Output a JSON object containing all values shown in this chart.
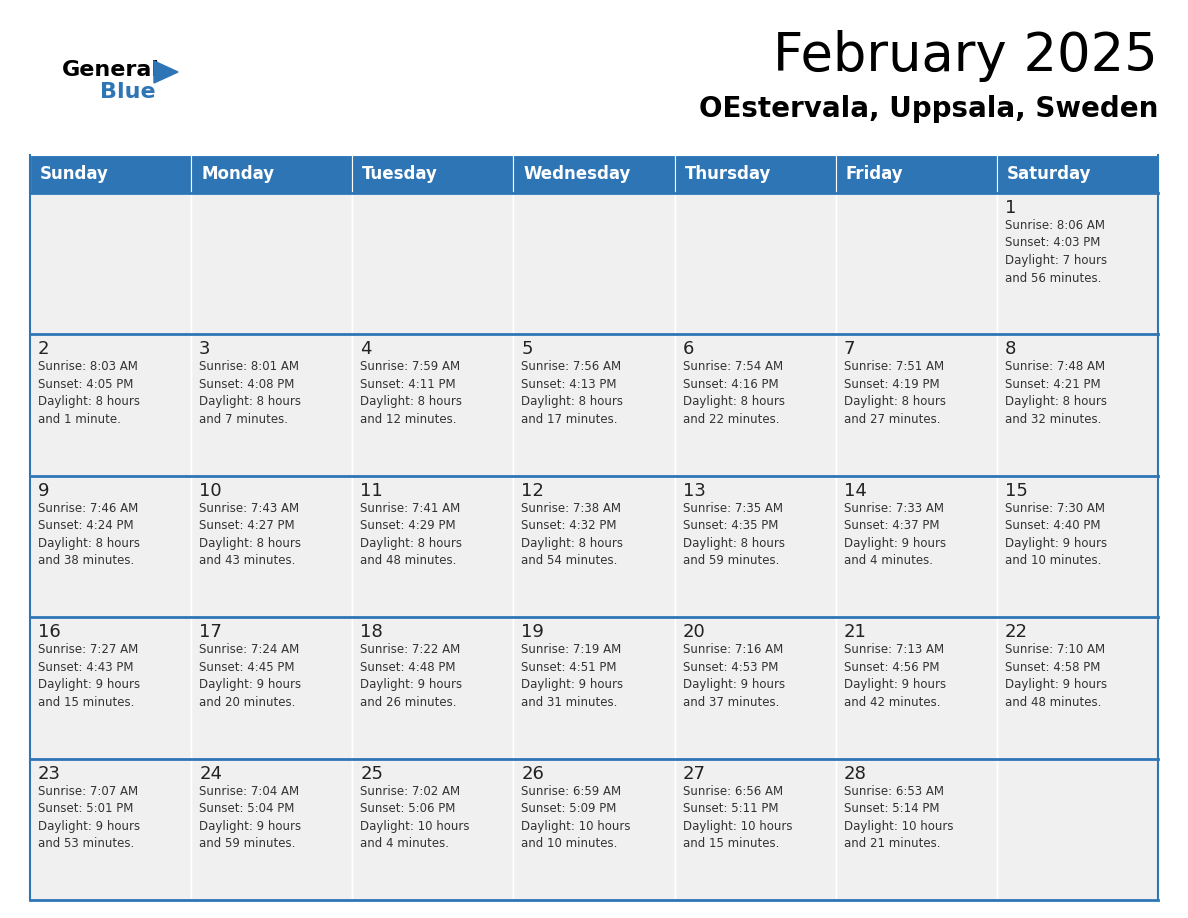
{
  "title": "February 2025",
  "subtitle": "OEstervala, Uppsala, Sweden",
  "header_color": "#2E75B6",
  "header_text_color": "#FFFFFF",
  "cell_bg_color": "#F0F0F0",
  "border_color": "#2E75B6",
  "day_of_week": [
    "Sunday",
    "Monday",
    "Tuesday",
    "Wednesday",
    "Thursday",
    "Friday",
    "Saturday"
  ],
  "calendar_data": [
    [
      {
        "day": null,
        "info": null
      },
      {
        "day": null,
        "info": null
      },
      {
        "day": null,
        "info": null
      },
      {
        "day": null,
        "info": null
      },
      {
        "day": null,
        "info": null
      },
      {
        "day": null,
        "info": null
      },
      {
        "day": 1,
        "info": "Sunrise: 8:06 AM\nSunset: 4:03 PM\nDaylight: 7 hours\nand 56 minutes."
      }
    ],
    [
      {
        "day": 2,
        "info": "Sunrise: 8:03 AM\nSunset: 4:05 PM\nDaylight: 8 hours\nand 1 minute."
      },
      {
        "day": 3,
        "info": "Sunrise: 8:01 AM\nSunset: 4:08 PM\nDaylight: 8 hours\nand 7 minutes."
      },
      {
        "day": 4,
        "info": "Sunrise: 7:59 AM\nSunset: 4:11 PM\nDaylight: 8 hours\nand 12 minutes."
      },
      {
        "day": 5,
        "info": "Sunrise: 7:56 AM\nSunset: 4:13 PM\nDaylight: 8 hours\nand 17 minutes."
      },
      {
        "day": 6,
        "info": "Sunrise: 7:54 AM\nSunset: 4:16 PM\nDaylight: 8 hours\nand 22 minutes."
      },
      {
        "day": 7,
        "info": "Sunrise: 7:51 AM\nSunset: 4:19 PM\nDaylight: 8 hours\nand 27 minutes."
      },
      {
        "day": 8,
        "info": "Sunrise: 7:48 AM\nSunset: 4:21 PM\nDaylight: 8 hours\nand 32 minutes."
      }
    ],
    [
      {
        "day": 9,
        "info": "Sunrise: 7:46 AM\nSunset: 4:24 PM\nDaylight: 8 hours\nand 38 minutes."
      },
      {
        "day": 10,
        "info": "Sunrise: 7:43 AM\nSunset: 4:27 PM\nDaylight: 8 hours\nand 43 minutes."
      },
      {
        "day": 11,
        "info": "Sunrise: 7:41 AM\nSunset: 4:29 PM\nDaylight: 8 hours\nand 48 minutes."
      },
      {
        "day": 12,
        "info": "Sunrise: 7:38 AM\nSunset: 4:32 PM\nDaylight: 8 hours\nand 54 minutes."
      },
      {
        "day": 13,
        "info": "Sunrise: 7:35 AM\nSunset: 4:35 PM\nDaylight: 8 hours\nand 59 minutes."
      },
      {
        "day": 14,
        "info": "Sunrise: 7:33 AM\nSunset: 4:37 PM\nDaylight: 9 hours\nand 4 minutes."
      },
      {
        "day": 15,
        "info": "Sunrise: 7:30 AM\nSunset: 4:40 PM\nDaylight: 9 hours\nand 10 minutes."
      }
    ],
    [
      {
        "day": 16,
        "info": "Sunrise: 7:27 AM\nSunset: 4:43 PM\nDaylight: 9 hours\nand 15 minutes."
      },
      {
        "day": 17,
        "info": "Sunrise: 7:24 AM\nSunset: 4:45 PM\nDaylight: 9 hours\nand 20 minutes."
      },
      {
        "day": 18,
        "info": "Sunrise: 7:22 AM\nSunset: 4:48 PM\nDaylight: 9 hours\nand 26 minutes."
      },
      {
        "day": 19,
        "info": "Sunrise: 7:19 AM\nSunset: 4:51 PM\nDaylight: 9 hours\nand 31 minutes."
      },
      {
        "day": 20,
        "info": "Sunrise: 7:16 AM\nSunset: 4:53 PM\nDaylight: 9 hours\nand 37 minutes."
      },
      {
        "day": 21,
        "info": "Sunrise: 7:13 AM\nSunset: 4:56 PM\nDaylight: 9 hours\nand 42 minutes."
      },
      {
        "day": 22,
        "info": "Sunrise: 7:10 AM\nSunset: 4:58 PM\nDaylight: 9 hours\nand 48 minutes."
      }
    ],
    [
      {
        "day": 23,
        "info": "Sunrise: 7:07 AM\nSunset: 5:01 PM\nDaylight: 9 hours\nand 53 minutes."
      },
      {
        "day": 24,
        "info": "Sunrise: 7:04 AM\nSunset: 5:04 PM\nDaylight: 9 hours\nand 59 minutes."
      },
      {
        "day": 25,
        "info": "Sunrise: 7:02 AM\nSunset: 5:06 PM\nDaylight: 10 hours\nand 4 minutes."
      },
      {
        "day": 26,
        "info": "Sunrise: 6:59 AM\nSunset: 5:09 PM\nDaylight: 10 hours\nand 10 minutes."
      },
      {
        "day": 27,
        "info": "Sunrise: 6:56 AM\nSunset: 5:11 PM\nDaylight: 10 hours\nand 15 minutes."
      },
      {
        "day": 28,
        "info": "Sunrise: 6:53 AM\nSunset: 5:14 PM\nDaylight: 10 hours\nand 21 minutes."
      },
      {
        "day": null,
        "info": null
      }
    ]
  ],
  "logo_triangle_color": "#2E75B6",
  "title_fontsize": 38,
  "subtitle_fontsize": 20,
  "header_fontsize": 12,
  "day_num_fontsize": 13,
  "cell_text_fontsize": 8.5
}
